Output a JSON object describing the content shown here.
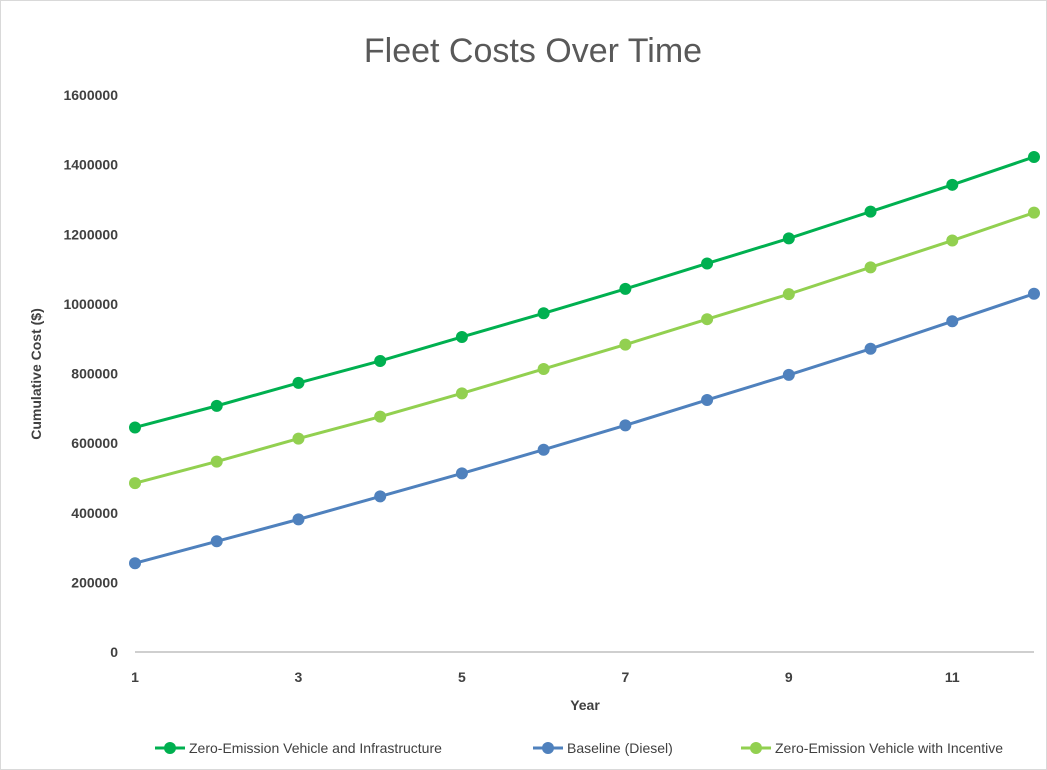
{
  "chart_data": {
    "type": "line",
    "title": "Fleet Costs Over Time",
    "xlabel": "Year",
    "ylabel": "Cumulative Cost ($)",
    "x": [
      1,
      2,
      3,
      4,
      5,
      6,
      7,
      8,
      9,
      10,
      11,
      12
    ],
    "x_tick_labels": [
      "1",
      "3",
      "5",
      "7",
      "9",
      "11"
    ],
    "x_tick_values": [
      1,
      3,
      5,
      7,
      9,
      11
    ],
    "ylim": [
      0,
      1600000
    ],
    "y_tick_values": [
      0,
      200000,
      400000,
      600000,
      800000,
      1000000,
      1200000,
      1400000,
      1600000
    ],
    "y_tick_labels": [
      "0",
      "200000",
      "400000",
      "600000",
      "800000",
      "1000000",
      "1200000",
      "1400000",
      "1600000"
    ],
    "grid": false,
    "legend_position": "bottom",
    "series": [
      {
        "name": "Zero-Emission Vehicle and Infrastructure",
        "color": "#00b050",
        "values": [
          645000,
          707000,
          773000,
          836000,
          905000,
          973000,
          1043000,
          1116000,
          1188000,
          1265000,
          1342000,
          1422000
        ]
      },
      {
        "name": "Baseline (Diesel)",
        "color": "#4f81bd",
        "values": [
          255000,
          318000,
          381000,
          447000,
          513000,
          581000,
          651000,
          724000,
          796000,
          871000,
          950000,
          1029000
        ]
      },
      {
        "name": "Zero-Emission Vehicle with Incentive",
        "color": "#92d050",
        "values": [
          485000,
          547000,
          613000,
          676000,
          743000,
          813000,
          883000,
          956000,
          1028000,
          1105000,
          1182000,
          1262000
        ]
      }
    ]
  }
}
